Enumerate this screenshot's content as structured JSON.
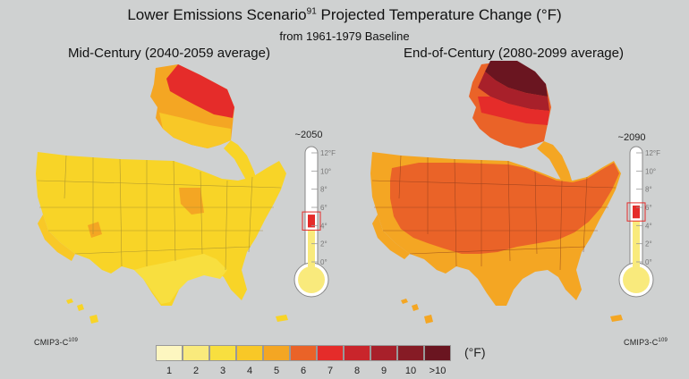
{
  "header": {
    "title": "Lower Emissions Scenario",
    "title_sup": "91",
    "title_rest": " Projected Temperature Change (°F)",
    "subtitle": "from 1961-1979 Baseline"
  },
  "panels": [
    {
      "title": "Mid-Century (2040-2059 average)",
      "thermometer_year": "~2050",
      "thermometer_level_f": 4.5,
      "credit": "CMIP3-C",
      "credit_sup": "109"
    },
    {
      "title": "End-of-Century (2080-2099 average)",
      "thermometer_year": "~2090",
      "thermometer_level_f": 5.5,
      "credit": "CMIP3-C",
      "credit_sup": "109"
    }
  ],
  "thermometer_ticks": [
    "12°F",
    "10°",
    "8°",
    "6°",
    "4°",
    "2°",
    "0°"
  ],
  "legend": {
    "unit": "(°F)",
    "items": [
      {
        "label": "1",
        "color": "#fdf6c0"
      },
      {
        "label": "2",
        "color": "#f9ea7c"
      },
      {
        "label": "3",
        "color": "#f8df3f"
      },
      {
        "label": "4",
        "color": "#f8c827"
      },
      {
        "label": "5",
        "color": "#f4a623"
      },
      {
        "label": "6",
        "color": "#ea6328"
      },
      {
        "label": "7",
        "color": "#e52c2a"
      },
      {
        "label": "8",
        "color": "#c9252b"
      },
      {
        "label": "9",
        "color": "#a8202a"
      },
      {
        "label": "10",
        "color": "#861b25"
      },
      {
        "label": ">10",
        "color": "#6a1520"
      }
    ]
  }
}
